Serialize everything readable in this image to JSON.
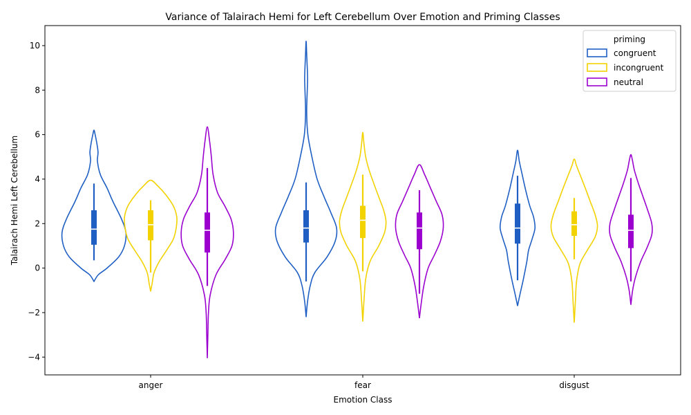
{
  "chart_data": {
    "type": "violin",
    "title": "Variance of Talairach Hemi for Left Cerebellum Over Emotion and Priming Classes",
    "xlabel": "Emotion Class",
    "ylabel": "Talairach Hemi Left Cerebellum",
    "categories": [
      "anger",
      "fear",
      "disgust"
    ],
    "ylim": [
      -4.8,
      10.9
    ],
    "yticks": [
      -4,
      -2,
      0,
      2,
      4,
      6,
      8,
      10
    ],
    "grid": false,
    "legend": {
      "title": "priming",
      "placement": "top-right"
    },
    "series": [
      {
        "name": "congruent",
        "color": "#1f5fc4",
        "violins": [
          {
            "category": "anger",
            "min": -0.6,
            "max": 6.2,
            "q1": 1.05,
            "median": 1.75,
            "q3": 2.6,
            "whisker_low": 0.35,
            "whisker_high": 3.8,
            "profile": [
              [
                -0.6,
                0.0
              ],
              [
                -0.3,
                0.15
              ],
              [
                0.0,
                0.45
              ],
              [
                0.5,
                0.85
              ],
              [
                1.0,
                1.05
              ],
              [
                1.6,
                1.1
              ],
              [
                2.2,
                0.95
              ],
              [
                3.0,
                0.65
              ],
              [
                3.6,
                0.45
              ],
              [
                4.2,
                0.22
              ],
              [
                4.8,
                0.12
              ],
              [
                5.2,
                0.14
              ],
              [
                5.6,
                0.1
              ],
              [
                6.0,
                0.04
              ],
              [
                6.2,
                0.0
              ]
            ]
          },
          {
            "category": "fear",
            "min": -2.2,
            "max": 10.2,
            "q1": 1.15,
            "median": 1.8,
            "q3": 2.6,
            "whisker_low": -0.6,
            "whisker_high": 3.85,
            "profile": [
              [
                -2.2,
                0.0
              ],
              [
                -1.5,
                0.05
              ],
              [
                -0.8,
                0.14
              ],
              [
                -0.2,
                0.3
              ],
              [
                0.5,
                0.72
              ],
              [
                1.2,
                1.0
              ],
              [
                1.8,
                1.05
              ],
              [
                2.5,
                0.85
              ],
              [
                3.2,
                0.62
              ],
              [
                4.0,
                0.38
              ],
              [
                5.0,
                0.2
              ],
              [
                6.0,
                0.06
              ],
              [
                7.0,
                0.02
              ],
              [
                8.0,
                0.04
              ],
              [
                8.5,
                0.05
              ],
              [
                9.0,
                0.04
              ],
              [
                9.6,
                0.02
              ],
              [
                10.2,
                0.0
              ]
            ]
          },
          {
            "category": "disgust",
            "min": -1.7,
            "max": 5.3,
            "q1": 1.1,
            "median": 1.8,
            "q3": 2.9,
            "whisker_low": -0.55,
            "whisker_high": 4.15,
            "profile": [
              [
                -1.7,
                0.0
              ],
              [
                -1.2,
                0.08
              ],
              [
                -0.5,
                0.2
              ],
              [
                0.3,
                0.32
              ],
              [
                0.8,
                0.38
              ],
              [
                1.3,
                0.5
              ],
              [
                1.8,
                0.6
              ],
              [
                2.3,
                0.55
              ],
              [
                2.8,
                0.42
              ],
              [
                3.5,
                0.28
              ],
              [
                4.2,
                0.16
              ],
              [
                4.8,
                0.06
              ],
              [
                5.3,
                0.0
              ]
            ]
          }
        ]
      },
      {
        "name": "incongruent",
        "color": "#f2d200",
        "violins": [
          {
            "category": "anger",
            "min": -1.05,
            "max": 3.95,
            "q1": 1.25,
            "median": 1.95,
            "q3": 2.6,
            "whisker_low": -0.2,
            "whisker_high": 3.05,
            "profile": [
              [
                -1.05,
                0.0
              ],
              [
                -0.7,
                0.05
              ],
              [
                -0.2,
                0.12
              ],
              [
                0.3,
                0.3
              ],
              [
                0.8,
                0.55
              ],
              [
                1.3,
                0.78
              ],
              [
                1.8,
                0.88
              ],
              [
                2.3,
                0.9
              ],
              [
                2.8,
                0.78
              ],
              [
                3.3,
                0.52
              ],
              [
                3.7,
                0.24
              ],
              [
                3.95,
                0.0
              ]
            ]
          },
          {
            "category": "fear",
            "min": -2.4,
            "max": 6.1,
            "q1": 1.35,
            "median": 2.15,
            "q3": 2.8,
            "whisker_low": -0.15,
            "whisker_high": 4.2,
            "profile": [
              [
                -2.4,
                0.0
              ],
              [
                -1.5,
                0.04
              ],
              [
                -0.5,
                0.1
              ],
              [
                0.3,
                0.25
              ],
              [
                1.0,
                0.55
              ],
              [
                1.6,
                0.75
              ],
              [
                2.1,
                0.8
              ],
              [
                2.6,
                0.72
              ],
              [
                3.2,
                0.55
              ],
              [
                3.8,
                0.38
              ],
              [
                4.4,
                0.22
              ],
              [
                5.0,
                0.1
              ],
              [
                5.6,
                0.04
              ],
              [
                6.1,
                0.0
              ]
            ]
          },
          {
            "category": "disgust",
            "min": -2.45,
            "max": 4.9,
            "q1": 1.45,
            "median": 1.95,
            "q3": 2.55,
            "whisker_low": 0.4,
            "whisker_high": 3.15,
            "profile": [
              [
                -2.45,
                0.0
              ],
              [
                -1.5,
                0.04
              ],
              [
                -0.6,
                0.08
              ],
              [
                0.2,
                0.2
              ],
              [
                0.8,
                0.45
              ],
              [
                1.4,
                0.72
              ],
              [
                1.9,
                0.8
              ],
              [
                2.4,
                0.72
              ],
              [
                3.0,
                0.55
              ],
              [
                3.6,
                0.38
              ],
              [
                4.2,
                0.2
              ],
              [
                4.6,
                0.08
              ],
              [
                4.9,
                0.0
              ]
            ]
          }
        ]
      },
      {
        "name": "neutral",
        "color": "#9b00cf",
        "violins": [
          {
            "category": "anger",
            "min": -4.05,
            "max": 6.35,
            "q1": 0.7,
            "median": 1.7,
            "q3": 2.5,
            "whisker_low": -0.8,
            "whisker_high": 4.5,
            "profile": [
              [
                -4.05,
                0.0
              ],
              [
                -3.0,
                0.02
              ],
              [
                -2.0,
                0.04
              ],
              [
                -1.2,
                0.1
              ],
              [
                -0.3,
                0.3
              ],
              [
                0.4,
                0.62
              ],
              [
                1.0,
                0.85
              ],
              [
                1.6,
                0.9
              ],
              [
                2.2,
                0.82
              ],
              [
                2.8,
                0.6
              ],
              [
                3.4,
                0.35
              ],
              [
                4.2,
                0.2
              ],
              [
                5.0,
                0.14
              ],
              [
                5.7,
                0.08
              ],
              [
                6.35,
                0.0
              ]
            ]
          },
          {
            "category": "fear",
            "min": -2.25,
            "max": 4.65,
            "q1": 0.85,
            "median": 1.8,
            "q3": 2.5,
            "whisker_low": -1.15,
            "whisker_high": 3.5,
            "profile": [
              [
                -2.25,
                0.0
              ],
              [
                -1.6,
                0.06
              ],
              [
                -0.8,
                0.15
              ],
              [
                0.0,
                0.3
              ],
              [
                0.6,
                0.52
              ],
              [
                1.2,
                0.72
              ],
              [
                1.8,
                0.82
              ],
              [
                2.4,
                0.78
              ],
              [
                3.0,
                0.58
              ],
              [
                3.6,
                0.38
              ],
              [
                4.2,
                0.18
              ],
              [
                4.65,
                0.0
              ]
            ]
          },
          {
            "category": "disgust",
            "min": -1.65,
            "max": 5.1,
            "q1": 0.9,
            "median": 1.7,
            "q3": 2.4,
            "whisker_low": -0.6,
            "whisker_high": 4.05,
            "profile": [
              [
                -1.65,
                0.0
              ],
              [
                -1.0,
                0.06
              ],
              [
                -0.4,
                0.16
              ],
              [
                0.3,
                0.34
              ],
              [
                0.9,
                0.55
              ],
              [
                1.5,
                0.72
              ],
              [
                2.0,
                0.72
              ],
              [
                2.6,
                0.58
              ],
              [
                3.2,
                0.42
              ],
              [
                3.8,
                0.26
              ],
              [
                4.4,
                0.12
              ],
              [
                4.8,
                0.06
              ],
              [
                5.1,
                0.0
              ]
            ]
          }
        ]
      }
    ]
  }
}
